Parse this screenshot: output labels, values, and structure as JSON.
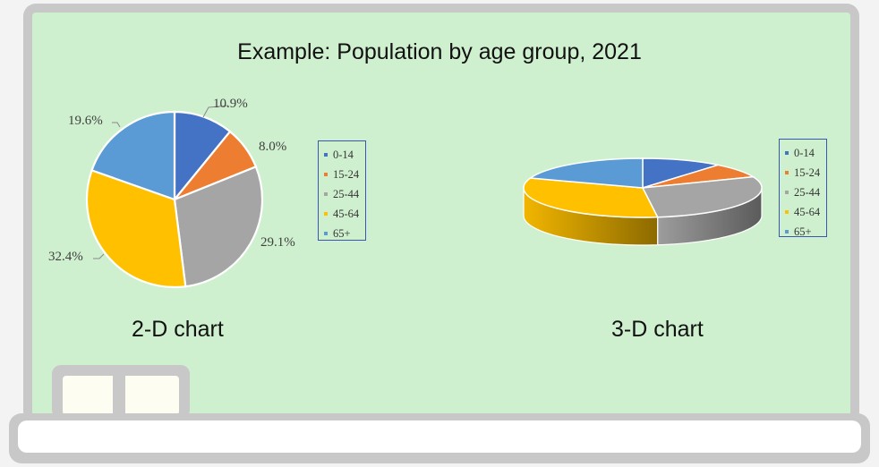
{
  "chart_data": [
    {
      "type": "pie",
      "title": "Example: Population by age group, 2021",
      "caption": "2-D chart",
      "categories": [
        "0-14",
        "15-24",
        "25-44",
        "45-64",
        "65+"
      ],
      "values": [
        10.9,
        8.0,
        29.1,
        32.4,
        19.6
      ],
      "data_labels": [
        "10.9%",
        "8.0%",
        "29.1%",
        "32.4%",
        "19.6%"
      ],
      "colors": [
        "#4472c4",
        "#ed7d31",
        "#a5a5a5",
        "#ffc000",
        "#5b9bd5"
      ],
      "legend": "right"
    },
    {
      "type": "pie",
      "variant": "3d",
      "caption": "3-D chart",
      "categories": [
        "0-14",
        "15-24",
        "25-44",
        "45-64",
        "65+"
      ],
      "values": [
        10.9,
        8.0,
        29.1,
        32.4,
        19.6
      ],
      "colors": [
        "#4472c4",
        "#ed7d31",
        "#a5a5a5",
        "#ffc000",
        "#5b9bd5"
      ],
      "legend": "right"
    }
  ]
}
